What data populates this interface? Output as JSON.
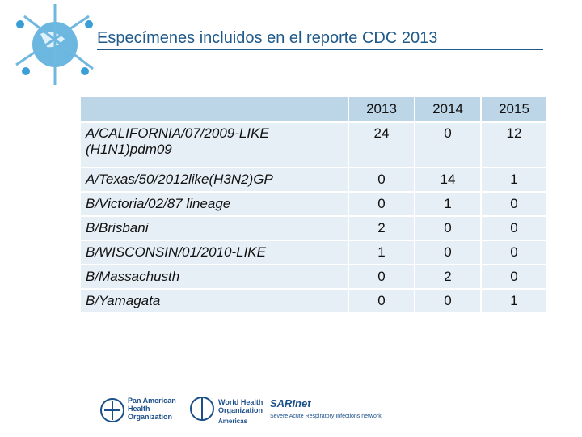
{
  "header": {
    "title": "Especímenes incluidos en el reporte CDC 2013"
  },
  "table": {
    "columns": [
      "2013",
      "2014",
      "2015"
    ],
    "rows": [
      [
        "A/CALIFORNIA/07/2009-LIKE (H1N1)pdm09",
        24,
        0,
        12
      ],
      [
        "A/Texas/50/2012like(H3N2)GP",
        0,
        14,
        1
      ],
      [
        "B/Victoria/02/87 lineage",
        0,
        1,
        0
      ],
      [
        "B/Brisbani",
        2,
        0,
        0
      ],
      [
        "B/WISCONSIN/01/2010-LIKE",
        1,
        0,
        0
      ],
      [
        "B/Massachusth",
        0,
        2,
        0
      ],
      [
        "B/Yamagata",
        0,
        0,
        1
      ]
    ]
  },
  "footer": {
    "paho": [
      "Pan American",
      "Health",
      "Organization"
    ],
    "who": [
      "World Health",
      "Organization"
    ],
    "who_region": "Americas",
    "sarinet": "SARInet",
    "sarinet_full": "Severe Acute Respiratory Infections network"
  }
}
